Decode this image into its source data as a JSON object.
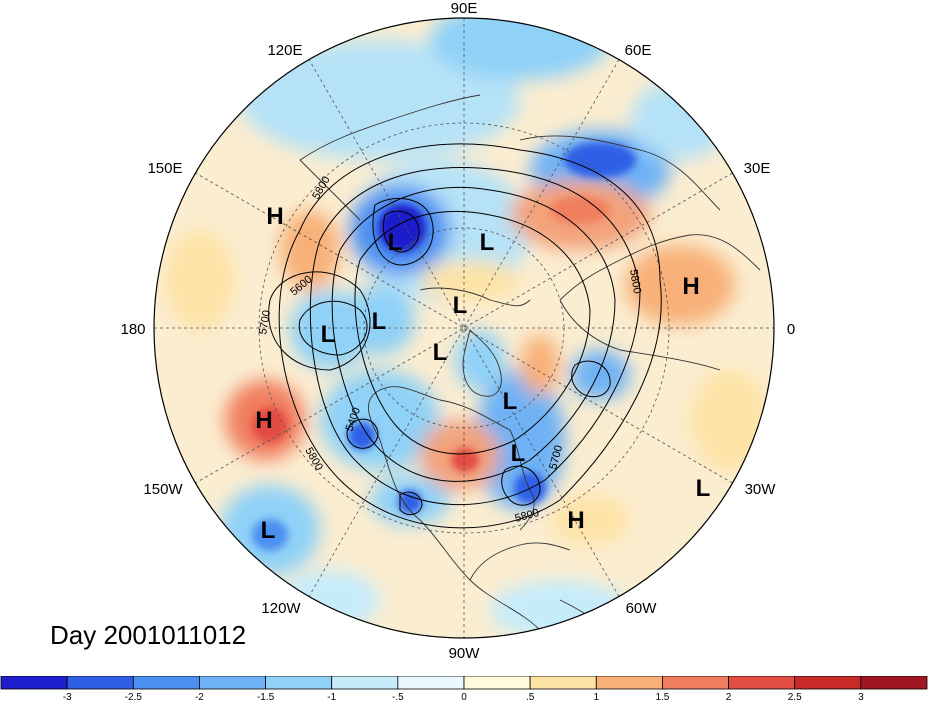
{
  "day_label": "Day 2001011012",
  "longitude_labels": [
    {
      "text": "90E",
      "lon": 90
    },
    {
      "text": "60E",
      "lon": 60
    },
    {
      "text": "30E",
      "lon": 30
    },
    {
      "text": "0",
      "lon": 0
    },
    {
      "text": "30W",
      "lon": -30
    },
    {
      "text": "60W",
      "lon": -60
    },
    {
      "text": "90W",
      "lon": -90
    },
    {
      "text": "120W",
      "lon": -120
    },
    {
      "text": "150W",
      "lon": -150
    },
    {
      "text": "180",
      "lon": 180
    },
    {
      "text": "150E",
      "lon": 150
    },
    {
      "text": "120E",
      "lon": 120
    }
  ],
  "pressure_systems": [
    {
      "type": "H",
      "name": "high-bering"
    },
    {
      "type": "L",
      "name": "low-siberia"
    },
    {
      "type": "L",
      "name": "low-laptev"
    },
    {
      "type": "L",
      "name": "low-arctic-1"
    },
    {
      "type": "L",
      "name": "low-alaska-west"
    },
    {
      "type": "L",
      "name": "low-alaska-east"
    },
    {
      "type": "L",
      "name": "low-pole"
    },
    {
      "type": "H",
      "name": "high-europe"
    },
    {
      "type": "L",
      "name": "low-greenland"
    },
    {
      "type": "L",
      "name": "low-baffin"
    },
    {
      "type": "H",
      "name": "high-pacific"
    },
    {
      "type": "L",
      "name": "low-pacific-south"
    },
    {
      "type": "L",
      "name": "low-atlantic"
    },
    {
      "type": "H",
      "name": "high-subtropical-atlantic"
    }
  ],
  "contour_labels": [
    "5800",
    "5600",
    "5700",
    "5400",
    "5800",
    "5800",
    "5700",
    "5800"
  ],
  "colorbar": {
    "tick_labels": [
      "-3",
      "-2.5",
      "-2",
      "-1.5",
      "-1",
      "-.5",
      "0",
      ".5",
      "1",
      "1.5",
      "2",
      "2.5",
      "3"
    ],
    "colors": [
      "#1e1ecc",
      "#2f5fe6",
      "#4b8ff0",
      "#6eb2f5",
      "#8fd1f7",
      "#c6ecfa",
      "#e8f8fd",
      "#fffadc",
      "#fde3a6",
      "#f8b078",
      "#f07e5e",
      "#e34c43",
      "#c82a2a",
      "#a01622"
    ]
  },
  "colors": {
    "ocean_blue": "#9fd6f5",
    "warm": "#f3a27a",
    "deep_blue": "#2e5fe0"
  }
}
